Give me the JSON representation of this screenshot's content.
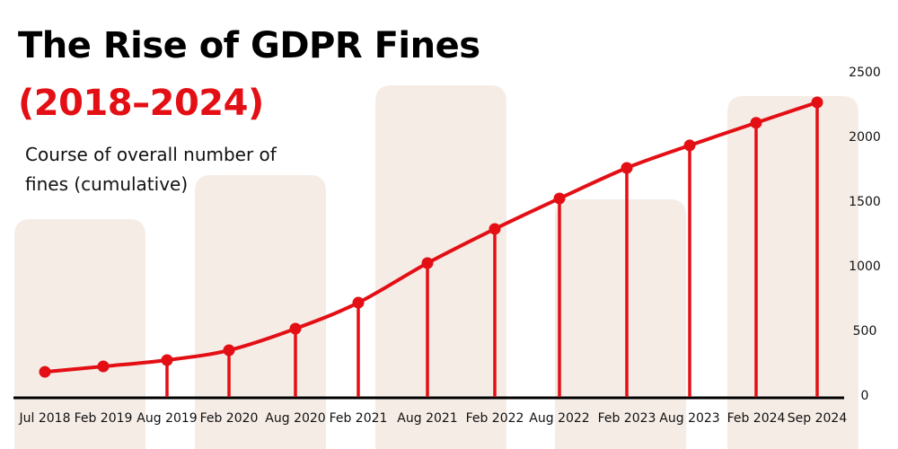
{
  "chart_data": {
    "type": "line",
    "title": "The Rise of GDPR Fines",
    "subtitle": "(2018–2024)",
    "description": "Course of overall number of fines (cumulative)",
    "xlabel": "",
    "ylabel": "",
    "categories": [
      "Jul 2018",
      "Feb 2019",
      "Aug 2019",
      "Feb 2020",
      "Aug 2020",
      "Feb 2021",
      "Aug 2021",
      "Feb 2022",
      "Aug 2022",
      "Feb 2023",
      "Aug 2023",
      "Feb 2024",
      "Sep 2024"
    ],
    "values": [
      180,
      222,
      271,
      347,
      514,
      715,
      1021,
      1285,
      1521,
      1757,
      1931,
      2106,
      2264
    ],
    "drop_lines": [
      false,
      false,
      true,
      true,
      true,
      true,
      true,
      true,
      true,
      true,
      true,
      true,
      true
    ],
    "ylim": [
      0,
      2500
    ],
    "yticks": [
      "0",
      "500",
      "1000",
      "1500",
      "2000",
      "2500"
    ],
    "y_axis_side": "right",
    "grid": false,
    "colors": {
      "line": "#e30f14",
      "axis": "#000000",
      "background_bars": "#f5ece6"
    }
  }
}
